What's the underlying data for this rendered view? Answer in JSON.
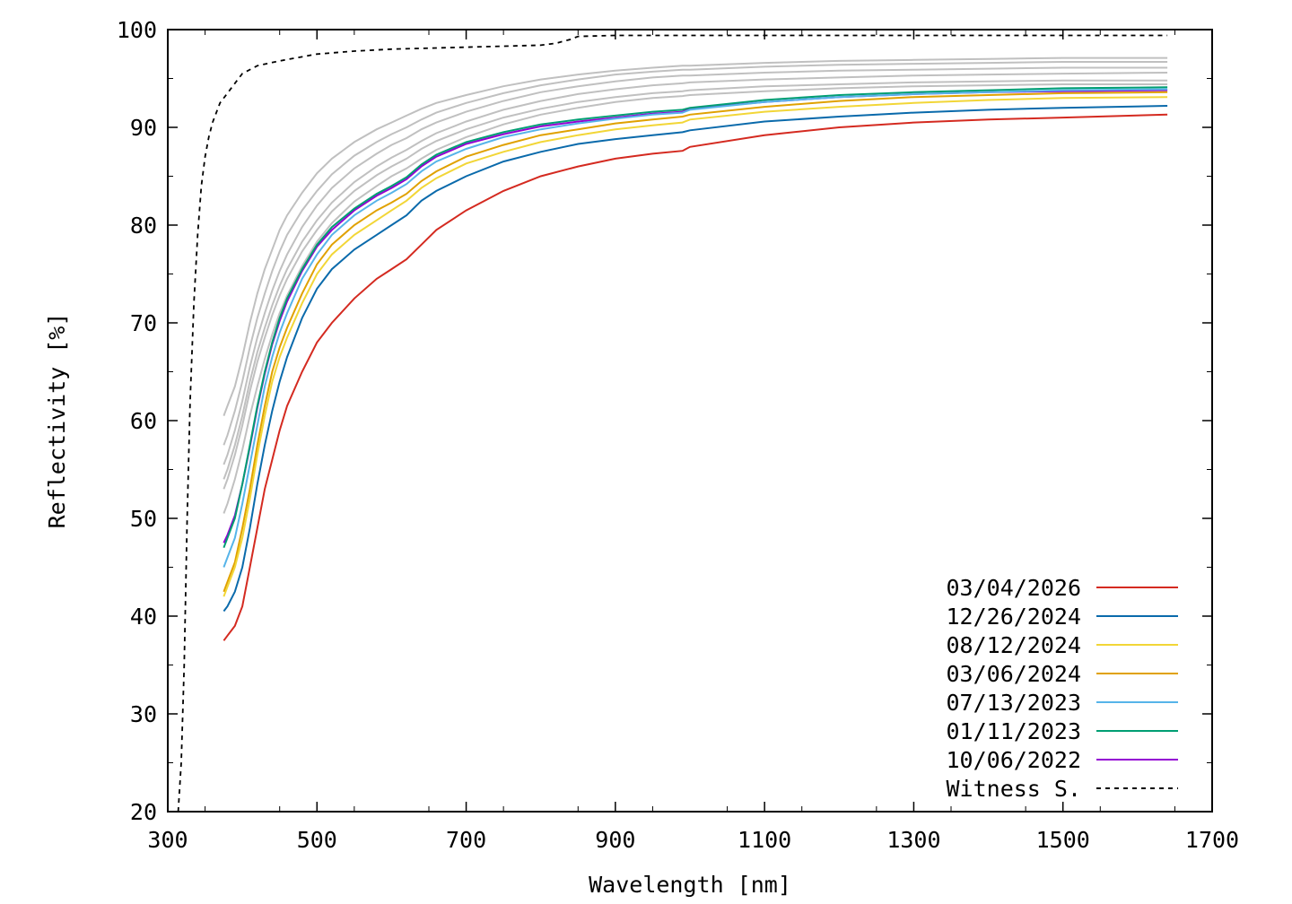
{
  "chart_data": {
    "type": "line",
    "xlabel": "Wavelength [nm]",
    "ylabel": "Reflectivity [%]",
    "xlim": [
      300,
      1700
    ],
    "ylim": [
      20,
      100
    ],
    "xticks": [
      300,
      500,
      700,
      900,
      1100,
      1300,
      1500,
      1700
    ],
    "yticks": [
      20,
      30,
      40,
      50,
      60,
      70,
      80,
      90,
      100
    ],
    "grid": false,
    "legend_position": "bottom-right",
    "series": [
      {
        "name": "03/04/2026",
        "color": "#d42a20",
        "style": "solid",
        "x": [
          375,
          380,
          390,
          400,
          410,
          420,
          430,
          440,
          450,
          460,
          480,
          500,
          520,
          550,
          580,
          600,
          620,
          640,
          660,
          700,
          750,
          800,
          850,
          900,
          950,
          990,
          1000,
          1100,
          1200,
          1300,
          1400,
          1500,
          1640
        ],
        "y": [
          37.5,
          38,
          39,
          41,
          45,
          49,
          53,
          56,
          59,
          61.5,
          65,
          68,
          70,
          72.5,
          74.5,
          75.5,
          76.5,
          78,
          79.5,
          81.5,
          83.5,
          85,
          86,
          86.8,
          87.3,
          87.6,
          88,
          89.2,
          90,
          90.5,
          90.8,
          91,
          91.3
        ]
      },
      {
        "name": "12/26/2024",
        "color": "#0a6aab",
        "style": "solid",
        "x": [
          375,
          380,
          390,
          400,
          410,
          420,
          430,
          440,
          450,
          460,
          480,
          500,
          520,
          550,
          580,
          600,
          620,
          640,
          660,
          700,
          750,
          800,
          850,
          900,
          950,
          990,
          1000,
          1100,
          1200,
          1300,
          1400,
          1500,
          1640
        ],
        "y": [
          40.5,
          41,
          42.5,
          45,
          49,
          53.5,
          57.5,
          61,
          64,
          66.5,
          70.5,
          73.5,
          75.5,
          77.5,
          79,
          80,
          81,
          82.5,
          83.5,
          85,
          86.5,
          87.5,
          88.3,
          88.8,
          89.2,
          89.5,
          89.7,
          90.6,
          91.1,
          91.5,
          91.8,
          92,
          92.2
        ]
      },
      {
        "name": "08/12/2024",
        "color": "#f2d637",
        "style": "solid",
        "x": [
          375,
          380,
          390,
          400,
          410,
          420,
          430,
          440,
          450,
          460,
          480,
          500,
          520,
          550,
          580,
          600,
          620,
          640,
          660,
          700,
          750,
          800,
          850,
          900,
          950,
          990,
          1000,
          1100,
          1200,
          1300,
          1400,
          1500,
          1640
        ],
        "y": [
          42,
          43,
          45,
          48,
          52,
          56.5,
          60.5,
          64,
          66.5,
          68.5,
          72,
          75,
          77,
          79,
          80.5,
          81.5,
          82.5,
          83.8,
          84.8,
          86.3,
          87.5,
          88.5,
          89.2,
          89.8,
          90.2,
          90.5,
          90.8,
          91.6,
          92.1,
          92.5,
          92.8,
          93,
          93.1
        ]
      },
      {
        "name": "03/06/2024",
        "color": "#e0a100",
        "style": "solid",
        "x": [
          375,
          380,
          390,
          400,
          410,
          420,
          430,
          440,
          450,
          460,
          480,
          500,
          520,
          550,
          580,
          600,
          620,
          640,
          660,
          700,
          750,
          800,
          850,
          900,
          950,
          990,
          1000,
          1100,
          1200,
          1300,
          1400,
          1500,
          1640
        ],
        "y": [
          42.5,
          43.5,
          45.5,
          49,
          53,
          57.5,
          61.5,
          65,
          67.5,
          69.5,
          73,
          76,
          78,
          80,
          81.5,
          82.3,
          83.2,
          84.5,
          85.5,
          87,
          88.2,
          89.2,
          89.8,
          90.4,
          90.8,
          91.1,
          91.3,
          92.1,
          92.7,
          93.1,
          93.3,
          93.5,
          93.6
        ]
      },
      {
        "name": "07/13/2023",
        "color": "#56b4e9",
        "style": "solid",
        "x": [
          375,
          380,
          390,
          400,
          410,
          420,
          430,
          440,
          450,
          460,
          480,
          500,
          520,
          550,
          580,
          600,
          620,
          640,
          660,
          700,
          750,
          800,
          850,
          900,
          950,
          990,
          1000,
          1100,
          1200,
          1300,
          1400,
          1500,
          1640
        ],
        "y": [
          45,
          46,
          48,
          51.5,
          55.5,
          59.5,
          63.5,
          66.5,
          69,
          71,
          74.5,
          77,
          79,
          81,
          82.5,
          83.3,
          84.2,
          85.5,
          86.5,
          87.8,
          89,
          89.8,
          90.4,
          90.9,
          91.3,
          91.5,
          91.8,
          92.6,
          93.1,
          93.4,
          93.6,
          93.8,
          93.9
        ]
      },
      {
        "name": "01/11/2023",
        "color": "#009e73",
        "style": "solid",
        "x": [
          375,
          380,
          390,
          400,
          410,
          420,
          430,
          440,
          450,
          460,
          480,
          500,
          520,
          550,
          580,
          600,
          620,
          640,
          660,
          700,
          750,
          800,
          850,
          900,
          950,
          990,
          1000,
          1100,
          1200,
          1300,
          1400,
          1500,
          1640
        ],
        "y": [
          47,
          48,
          50,
          53.5,
          57.5,
          61.5,
          65,
          68,
          70.5,
          72.5,
          75.5,
          78,
          79.8,
          81.7,
          83.2,
          84,
          84.9,
          86.2,
          87.2,
          88.5,
          89.5,
          90.3,
          90.8,
          91.2,
          91.6,
          91.8,
          92,
          92.8,
          93.3,
          93.6,
          93.8,
          94,
          94.1
        ]
      },
      {
        "name": "10/06/2022",
        "color": "#9400d3",
        "style": "solid",
        "x": [
          375,
          380,
          390,
          400,
          410,
          420,
          430,
          440,
          450,
          460,
          480,
          500,
          520,
          550,
          580,
          600,
          620,
          640,
          660,
          700,
          750,
          800,
          850,
          900,
          950,
          990,
          1000,
          1100,
          1200,
          1300,
          1400,
          1500,
          1640
        ],
        "y": [
          47.5,
          48.3,
          50.3,
          53.5,
          57.3,
          61.3,
          64.8,
          67.8,
          70.2,
          72.2,
          75.3,
          77.8,
          79.5,
          81.5,
          83,
          83.8,
          84.7,
          86,
          87,
          88.3,
          89.3,
          90.1,
          90.6,
          91,
          91.4,
          91.6,
          91.9,
          92.6,
          93.1,
          93.4,
          93.6,
          93.7,
          93.8
        ]
      },
      {
        "name": "Witness S.",
        "color": "#000000",
        "style": "dashed",
        "x": [
          314,
          318,
          322,
          326,
          330,
          335,
          340,
          345,
          350,
          355,
          360,
          370,
          380,
          390,
          400,
          420,
          450,
          500,
          550,
          600,
          650,
          700,
          750,
          800,
          820,
          840,
          850,
          900,
          1000,
          1200,
          1400,
          1640
        ],
        "y": [
          20,
          25,
          35,
          50,
          62,
          72,
          79,
          84,
          87,
          89,
          90.5,
          92.5,
          93.5,
          94.5,
          95.5,
          96.3,
          96.8,
          97.5,
          97.8,
          98,
          98.1,
          98.2,
          98.3,
          98.4,
          98.6,
          99,
          99.3,
          99.4,
          99.4,
          99.4,
          99.4,
          99.4
        ]
      }
    ],
    "reference_series": {
      "color": "#c0c0c0",
      "x": [
        375,
        380,
        390,
        400,
        410,
        420,
        430,
        440,
        450,
        460,
        480,
        500,
        520,
        550,
        580,
        600,
        620,
        640,
        660,
        700,
        750,
        800,
        850,
        900,
        950,
        990,
        1000,
        1100,
        1200,
        1300,
        1400,
        1500,
        1640
      ],
      "y_sets": [
        [
          60.5,
          61.5,
          63.5,
          66.5,
          70,
          73,
          75.5,
          77.5,
          79.5,
          81,
          83.3,
          85.3,
          86.8,
          88.5,
          89.8,
          90.5,
          91.2,
          91.9,
          92.5,
          93.3,
          94.2,
          94.9,
          95.4,
          95.8,
          96.1,
          96.3,
          96.3,
          96.6,
          96.8,
          96.9,
          97,
          97.1,
          97.1
        ],
        [
          57.5,
          58.5,
          61,
          64,
          67.5,
          70.5,
          73,
          75.3,
          77.3,
          79,
          81.5,
          83.5,
          85.2,
          87.1,
          88.5,
          89.3,
          90,
          90.8,
          91.5,
          92.5,
          93.5,
          94.3,
          94.9,
          95.4,
          95.7,
          95.9,
          95.9,
          96.2,
          96.4,
          96.5,
          96.6,
          96.7,
          96.7
        ],
        [
          55.5,
          56.5,
          59,
          62,
          65.5,
          68.5,
          71,
          73.3,
          75.3,
          77,
          79.8,
          82,
          83.8,
          85.8,
          87.3,
          88.2,
          88.9,
          89.8,
          90.5,
          91.6,
          92.7,
          93.6,
          94.2,
          94.7,
          95.1,
          95.3,
          95.3,
          95.6,
          95.8,
          95.9,
          96,
          96.1,
          96.1
        ],
        [
          54,
          55,
          57.5,
          60.5,
          64,
          67,
          69.5,
          71.8,
          73.8,
          75.5,
          78.3,
          80.5,
          82.3,
          84.4,
          86,
          86.9,
          87.7,
          88.6,
          89.4,
          90.6,
          91.8,
          92.7,
          93.4,
          93.9,
          94.3,
          94.5,
          94.6,
          94.9,
          95.1,
          95.3,
          95.4,
          95.5,
          95.6
        ],
        [
          53,
          54,
          56.5,
          59.5,
          63,
          66,
          68.5,
          70.8,
          72.8,
          74.5,
          77.3,
          79.5,
          81.4,
          83.5,
          85.1,
          86,
          86.8,
          87.8,
          88.6,
          89.8,
          91,
          91.9,
          92.6,
          93.1,
          93.5,
          93.7,
          93.8,
          94.2,
          94.4,
          94.6,
          94.7,
          94.8,
          94.8
        ],
        [
          50.5,
          51.5,
          54,
          57,
          60.5,
          63.5,
          66.3,
          68.8,
          71,
          72.8,
          75.8,
          78.3,
          80.2,
          82.4,
          84,
          85,
          85.8,
          86.8,
          87.7,
          89,
          90.3,
          91.3,
          92,
          92.6,
          93,
          93.2,
          93.3,
          93.7,
          94,
          94.2,
          94.3,
          94.4,
          94.4
        ]
      ]
    }
  }
}
